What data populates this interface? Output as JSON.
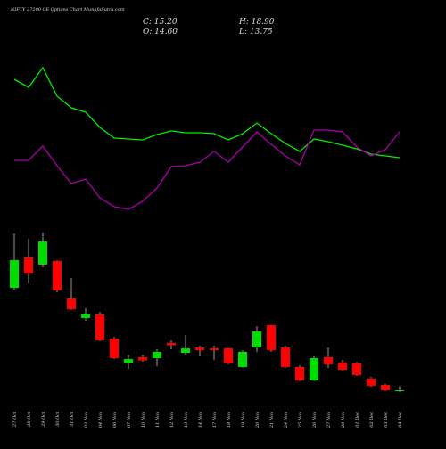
{
  "chart_data": {
    "type": "candlestick",
    "title": "NIFTY 27200  CE Options Chart MunafaSutra.com",
    "summary": [
      "C: 15.20",
      "H: 18.90",
      "O: 14.60",
      "L: 13.75"
    ],
    "categories": [
      "27 Oct",
      "28 Oct",
      "29 Oct",
      "30 Oct",
      "31 Oct",
      "03 Nov",
      "04 Nov",
      "06 Nov",
      "07 Nov",
      "10 Nov",
      "11 Nov",
      "12 Nov",
      "13 Nov",
      "14 Nov",
      "17 Nov",
      "18 Nov",
      "19 Nov",
      "20 Nov",
      "21 Nov",
      "24 Nov",
      "25 Nov",
      "26 Nov",
      "27 Nov",
      "28 Nov",
      "01 Dec",
      "02 Dec",
      "03 Dec",
      "04 Dec"
    ],
    "open": [
      107.2,
      134.4,
      128,
      131.2,
      97.6,
      80,
      83.2,
      61.6,
      39.2,
      44.8,
      44,
      57.6,
      48.8,
      53.6,
      52.8,
      52.8,
      36,
      53.6,
      73.6,
      53.6,
      36,
      24,
      44.8,
      40,
      39.2,
      25.6,
      20,
      14.6
    ],
    "high": [
      156,
      151.2,
      156.8,
      132,
      116,
      88.8,
      85.6,
      63.2,
      47.2,
      47.2,
      52,
      60,
      64.8,
      55.2,
      55.2,
      52.8,
      51.2,
      72.8,
      73.6,
      55.2,
      37.6,
      45.6,
      53.6,
      42.4,
      40.8,
      27.2,
      20.8,
      18.9
    ],
    "low": [
      105.6,
      111.2,
      125.6,
      103.2,
      87.2,
      77.6,
      59.2,
      43.2,
      34.4,
      40.8,
      36.8,
      52,
      47.2,
      45.6,
      42.4,
      38.4,
      35.2,
      49.6,
      49.6,
      35.2,
      23.2,
      23.2,
      35.2,
      32.8,
      28,
      18.4,
      14.4,
      13.75
    ],
    "close": [
      132,
      120,
      148.8,
      104.8,
      88,
      84,
      60,
      44,
      43.2,
      42,
      49.6,
      55.6,
      52.8,
      51.2,
      51.2,
      39.2,
      49.6,
      68,
      51.2,
      36,
      24,
      44,
      38.4,
      33.6,
      28.8,
      19.2,
      15.2,
      15.2
    ],
    "up_color": "#00dd00",
    "down_color": "#ff0000",
    "ylim": [
      0,
      200
    ],
    "series": [
      {
        "color": "#00ee00",
        "axis": "y2",
        "values": [
          161,
          152,
          174,
          142,
          129,
          124,
          107,
          95,
          94,
          93,
          99,
          103,
          101,
          101,
          100,
          93,
          100,
          112,
          100,
          89,
          80,
          94,
          91,
          87,
          83,
          77,
          75,
          73
        ]
      },
      {
        "color": "#aa00aa",
        "axis": "y2",
        "values": [
          70,
          70,
          86,
          64,
          44,
          49,
          28,
          18,
          15,
          24,
          39,
          63,
          64,
          68,
          80,
          68,
          85,
          102,
          88,
          75,
          65,
          104,
          104,
          102,
          85,
          75,
          82,
          102
        ]
      }
    ],
    "y2lim": [
      0,
      250
    ]
  }
}
